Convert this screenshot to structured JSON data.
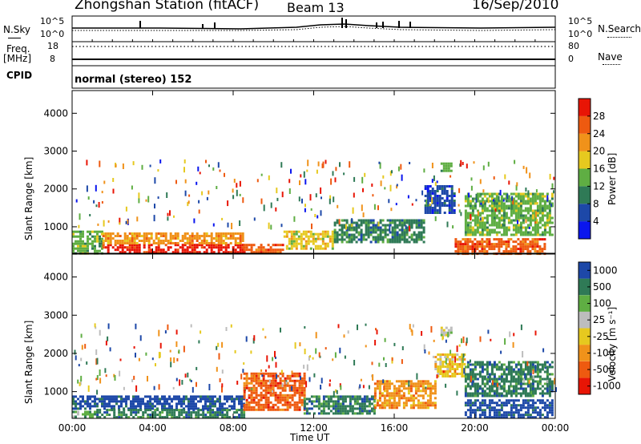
{
  "header": {
    "station": "Zhongshan Station (fitACF)",
    "beam": "Beam 13",
    "date": "16/Sep/2010"
  },
  "side_labels": {
    "nsky": "N.Sky",
    "freq": "Freq.",
    "freq_unit": "[MHz]",
    "cpid": "CPID",
    "nsearch": "N.Search",
    "nave": "Nave"
  },
  "strip_ticks": {
    "nsky_hi": "10^5",
    "nsky_lo": "10^0",
    "freq_hi": "18",
    "freq_lo": "8",
    "nave_hi": "80",
    "nave_lo": "0"
  },
  "cpid_text": "normal (stereo) 152",
  "colors": {
    "power": [
      "#0a16ee",
      "#1d48a8",
      "#2f7a56",
      "#5fae43",
      "#e6c91f",
      "#f0921a",
      "#ee5a10",
      "#e81505"
    ],
    "velocity": [
      "#e81505",
      "#ee5a10",
      "#f0921a",
      "#e6c91f",
      "#bdbdbd",
      "#5fae43",
      "#2f7a56",
      "#1d48a8"
    ]
  },
  "chart_data": [
    {
      "type": "heatmap",
      "name": "power",
      "ylabel": "Slant Range [km]",
      "ylim": [
        300,
        4600
      ],
      "yticks": [
        "1000",
        "2000",
        "3000",
        "4000"
      ],
      "xlim": [
        0,
        24
      ],
      "colorbar_label": "Power [dB]",
      "colorbar_ticks": [
        "4",
        "8",
        "12",
        "16",
        "20",
        "24",
        "28"
      ],
      "bands": [
        {
          "x": [
            0.0,
            1.5
          ],
          "y": [
            300,
            900
          ],
          "c": 3
        },
        {
          "x": [
            1.5,
            8.5
          ],
          "y": [
            350,
            550
          ],
          "c": 7
        },
        {
          "x": [
            1.5,
            8.5
          ],
          "y": [
            550,
            850
          ],
          "c": 5
        },
        {
          "x": [
            8.5,
            10.5
          ],
          "y": [
            350,
            550
          ],
          "c": 6
        },
        {
          "x": [
            10.5,
            13.0
          ],
          "y": [
            400,
            900
          ],
          "c": 4
        },
        {
          "x": [
            13.0,
            17.5
          ],
          "y": [
            600,
            1200
          ],
          "c": 2
        },
        {
          "x": [
            17.5,
            19.0
          ],
          "y": [
            1400,
            2100
          ],
          "c": 1
        },
        {
          "x": [
            18.3,
            18.8
          ],
          "y": [
            2500,
            2700
          ],
          "c": 3
        },
        {
          "x": [
            19.0,
            23.5
          ],
          "y": [
            300,
            700
          ],
          "c": 6
        },
        {
          "x": [
            19.5,
            23.8
          ],
          "y": [
            800,
            1900
          ],
          "c": 3
        }
      ]
    },
    {
      "type": "heatmap",
      "name": "velocity",
      "ylabel": "Slant Range [km]",
      "ylim": [
        300,
        4600
      ],
      "yticks": [
        "1000",
        "2000",
        "3000",
        "4000"
      ],
      "xlim": [
        0,
        24
      ],
      "xlabel": "Time UT",
      "xticks": [
        "00:00",
        "04:00",
        "08:00",
        "12:00",
        "16:00",
        "20:00",
        "00:00"
      ],
      "colorbar_label": "Velocity [m s⁻¹]",
      "colorbar_ticks": [
        "1000",
        "500",
        "100",
        "25",
        "-25",
        "-100",
        "-500",
        "-1000"
      ],
      "bands": [
        {
          "x": [
            0.0,
            1.2
          ],
          "y": [
            350,
            500
          ],
          "c": 5
        },
        {
          "x": [
            0.0,
            8.5
          ],
          "y": [
            550,
            900
          ],
          "c": 7
        },
        {
          "x": [
            1.2,
            8.5
          ],
          "y": [
            350,
            550
          ],
          "c": 6
        },
        {
          "x": [
            8.5,
            11.5
          ],
          "y": [
            500,
            1500
          ],
          "c": 1
        },
        {
          "x": [
            11.5,
            15.0
          ],
          "y": [
            400,
            900
          ],
          "c": 6
        },
        {
          "x": [
            15.0,
            18.0
          ],
          "y": [
            600,
            1300
          ],
          "c": 2
        },
        {
          "x": [
            18.0,
            19.5
          ],
          "y": [
            1400,
            2000
          ],
          "c": 3
        },
        {
          "x": [
            18.3,
            18.8
          ],
          "y": [
            2500,
            2700
          ],
          "c": 4
        },
        {
          "x": [
            19.5,
            23.8
          ],
          "y": [
            300,
            800
          ],
          "c": 7
        },
        {
          "x": [
            19.5,
            23.8
          ],
          "y": [
            900,
            1800
          ],
          "c": 6
        }
      ]
    }
  ]
}
